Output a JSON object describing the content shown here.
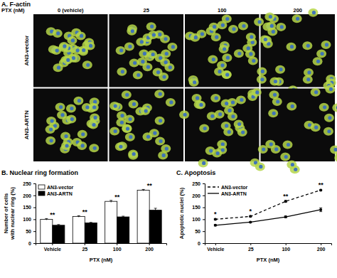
{
  "panel_a": {
    "title": "A. F-actin",
    "column_header": "PTX (nM)",
    "columns": [
      "0 (vehicle)",
      "25",
      "100",
      "200"
    ],
    "rows": [
      "AN3-vector",
      "AN3-ARTN"
    ]
  },
  "chart_data": [
    {
      "type": "bar",
      "title": "B. Nuclear ring formation",
      "x_label": "PTX (nM)",
      "y_label": [
        "Number of cells",
        "with nuclear ring (%)"
      ],
      "categories": [
        "Vehicle",
        "25",
        "100",
        "200"
      ],
      "series": [
        {
          "name": "AN3-vector",
          "color": "#ffffff",
          "values": [
            100,
            112,
            175,
            222
          ],
          "errors": [
            3,
            3,
            4,
            3
          ]
        },
        {
          "name": "AN3-ARTN",
          "color": "#000000",
          "values": [
            75,
            85,
            110,
            138
          ],
          "errors": [
            3,
            2,
            3,
            8
          ]
        }
      ],
      "annotations": [
        "**",
        "**",
        "**",
        "**"
      ],
      "ylim": [
        0,
        250
      ],
      "yticks": [
        0,
        50,
        100,
        150,
        200,
        250
      ],
      "legend": "upper left"
    },
    {
      "type": "line",
      "title": "C. Apoptosis",
      "x_label": "PTX (nM)",
      "y_label": [
        "Apoptotic nuclei (%)"
      ],
      "categories": [
        "Vehicle",
        "25",
        "100",
        "200"
      ],
      "series": [
        {
          "name": "AN3-vector",
          "color": "#000000",
          "line_style": "dashed",
          "marker": "circle",
          "values": [
            100,
            112,
            175,
            222
          ],
          "errors": [
            3,
            3,
            4,
            3
          ]
        },
        {
          "name": "AN3-ARTN",
          "color": "#000000",
          "line_style": "solid",
          "marker": "circle",
          "values": [
            75,
            88,
            110,
            140
          ],
          "errors": [
            3,
            2,
            4,
            8
          ]
        }
      ],
      "annotations": [
        "*",
        "*",
        "**",
        "**"
      ],
      "ylim": [
        0,
        250
      ],
      "yticks": [
        0,
        50,
        100,
        150,
        200,
        250
      ],
      "legend": "upper left"
    }
  ]
}
